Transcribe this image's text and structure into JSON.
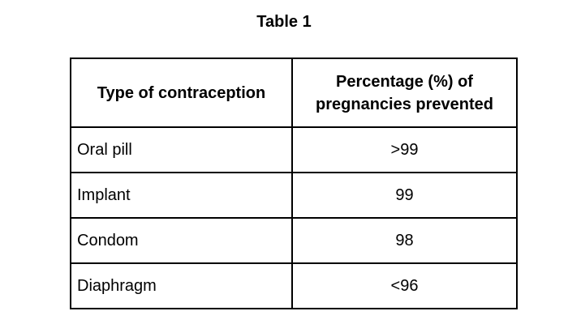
{
  "caption": "Table 1",
  "table": {
    "headers": {
      "type": "Type of contraception",
      "percentage_line1": "Percentage (%) of",
      "percentage_line2": "pregnancies prevented"
    },
    "rows": [
      {
        "type": "Oral pill",
        "percentage": ">99"
      },
      {
        "type": "Implant",
        "percentage": "99"
      },
      {
        "type": "Condom",
        "percentage": "98"
      },
      {
        "type": "Diaphragm",
        "percentage": "<96"
      }
    ]
  }
}
